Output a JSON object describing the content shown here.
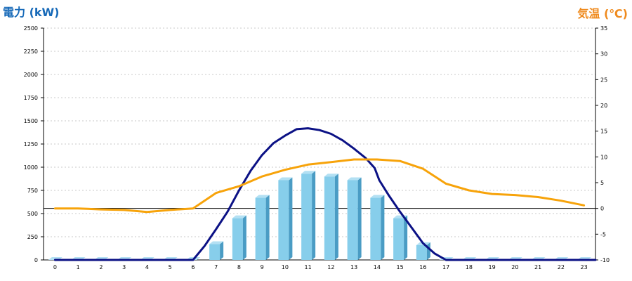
{
  "chart_data": {
    "type": "bar",
    "left_axis_title": "電力 (kW)",
    "right_axis_title": "気温 (℃)",
    "categories": [
      "0",
      "1",
      "2",
      "3",
      "4",
      "5",
      "6",
      "7",
      "8",
      "9",
      "10",
      "11",
      "12",
      "13",
      "14",
      "15",
      "16",
      "17",
      "18",
      "19",
      "20",
      "21",
      "22",
      "23"
    ],
    "y_left_ticks": [
      0,
      250,
      500,
      750,
      1000,
      1250,
      1500,
      1750,
      2000,
      2250,
      2500
    ],
    "y_left_range": [
      0,
      2500
    ],
    "y_right_ticks": [
      -10,
      -5,
      0,
      5,
      10,
      15,
      20,
      25,
      30,
      35
    ],
    "y_right_range": [
      -10,
      35
    ],
    "grid": true,
    "zero_line_right_axis": 0,
    "colors": {
      "bar": "#87ceeb",
      "bar_side": "#4a9cc4",
      "bar_top": "#b3e0f3",
      "power_line": "#0b1185",
      "temperature_line": "#f7a30a",
      "left_title": "#1669b8",
      "right_title": "#ef8a1d"
    },
    "series": [
      {
        "type": "bar",
        "axis": "left",
        "values": [
          0,
          0,
          0,
          0,
          0,
          0,
          0,
          170,
          450,
          670,
          860,
          930,
          900,
          860,
          670,
          450,
          160,
          0,
          0,
          0,
          0,
          0,
          0,
          0
        ]
      },
      {
        "type": "line",
        "axis": "left",
        "x": [
          0,
          6,
          6.5,
          7,
          7.5,
          8,
          8.5,
          9,
          9.5,
          10,
          10.5,
          11,
          11.5,
          12,
          12.5,
          13,
          13.5,
          13.9,
          14.1,
          14.5,
          15,
          15.5,
          16,
          16.5,
          17,
          23.5
        ],
        "values": [
          0,
          0,
          150,
          330,
          520,
          750,
          960,
          1130,
          1260,
          1340,
          1410,
          1420,
          1400,
          1360,
          1290,
          1200,
          1100,
          990,
          860,
          700,
          520,
          350,
          180,
          70,
          0,
          0
        ]
      },
      {
        "type": "line",
        "axis": "right",
        "x": [
          0,
          1,
          2,
          3,
          4,
          5,
          6,
          7,
          8,
          9,
          10,
          11,
          12,
          13,
          14,
          15,
          16,
          17,
          18,
          19,
          20,
          21,
          22,
          23
        ],
        "values": [
          0,
          0,
          -0.2,
          -0.3,
          -0.7,
          -0.3,
          0,
          3,
          4.3,
          6.2,
          7.5,
          8.5,
          9,
          9.5,
          9.5,
          9.2,
          7.7,
          4.8,
          3.5,
          2.8,
          2.6,
          2.2,
          1.5,
          0.6
        ]
      }
    ]
  }
}
